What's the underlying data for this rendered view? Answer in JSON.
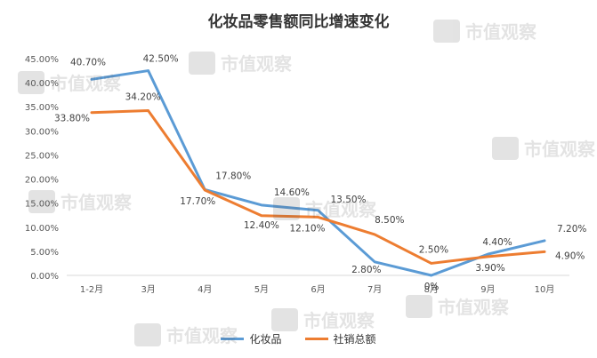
{
  "chart_data": {
    "type": "line",
    "title": "化妆品零售额同比增速变化",
    "categories": [
      "1-2月",
      "3月",
      "4月",
      "5月",
      "6月",
      "7月",
      "8月",
      "9月",
      "10月"
    ],
    "series": [
      {
        "name": "化妆品",
        "color": "#5B9BD5",
        "values": [
          40.7,
          42.5,
          17.8,
          14.6,
          13.5,
          2.8,
          0,
          4.4,
          7.2
        ],
        "labels": [
          "40.70%",
          "42.50%",
          "17.80%",
          "14.60%",
          "13.50%",
          "2.80%",
          "0%",
          "4.40%",
          "7.20%"
        ]
      },
      {
        "name": "社销总额",
        "color": "#ED7D31",
        "values": [
          33.8,
          34.2,
          17.7,
          12.4,
          12.1,
          8.5,
          2.5,
          3.9,
          4.9
        ],
        "labels": [
          "33.80%",
          "34.20%",
          "17.70%",
          "12.40%",
          "12.10%",
          "8.50%",
          "2.50%",
          "3.90%",
          "4.90%"
        ]
      }
    ],
    "y_ticks": [
      "0.00%",
      "5.00%",
      "10.00%",
      "15.00%",
      "20.00%",
      "25.00%",
      "30.00%",
      "35.00%",
      "40.00%",
      "45.00%"
    ],
    "ylim": [
      0,
      45
    ],
    "grid": false,
    "legend_position": "bottom"
  },
  "watermark": {
    "text": "市值观察"
  }
}
